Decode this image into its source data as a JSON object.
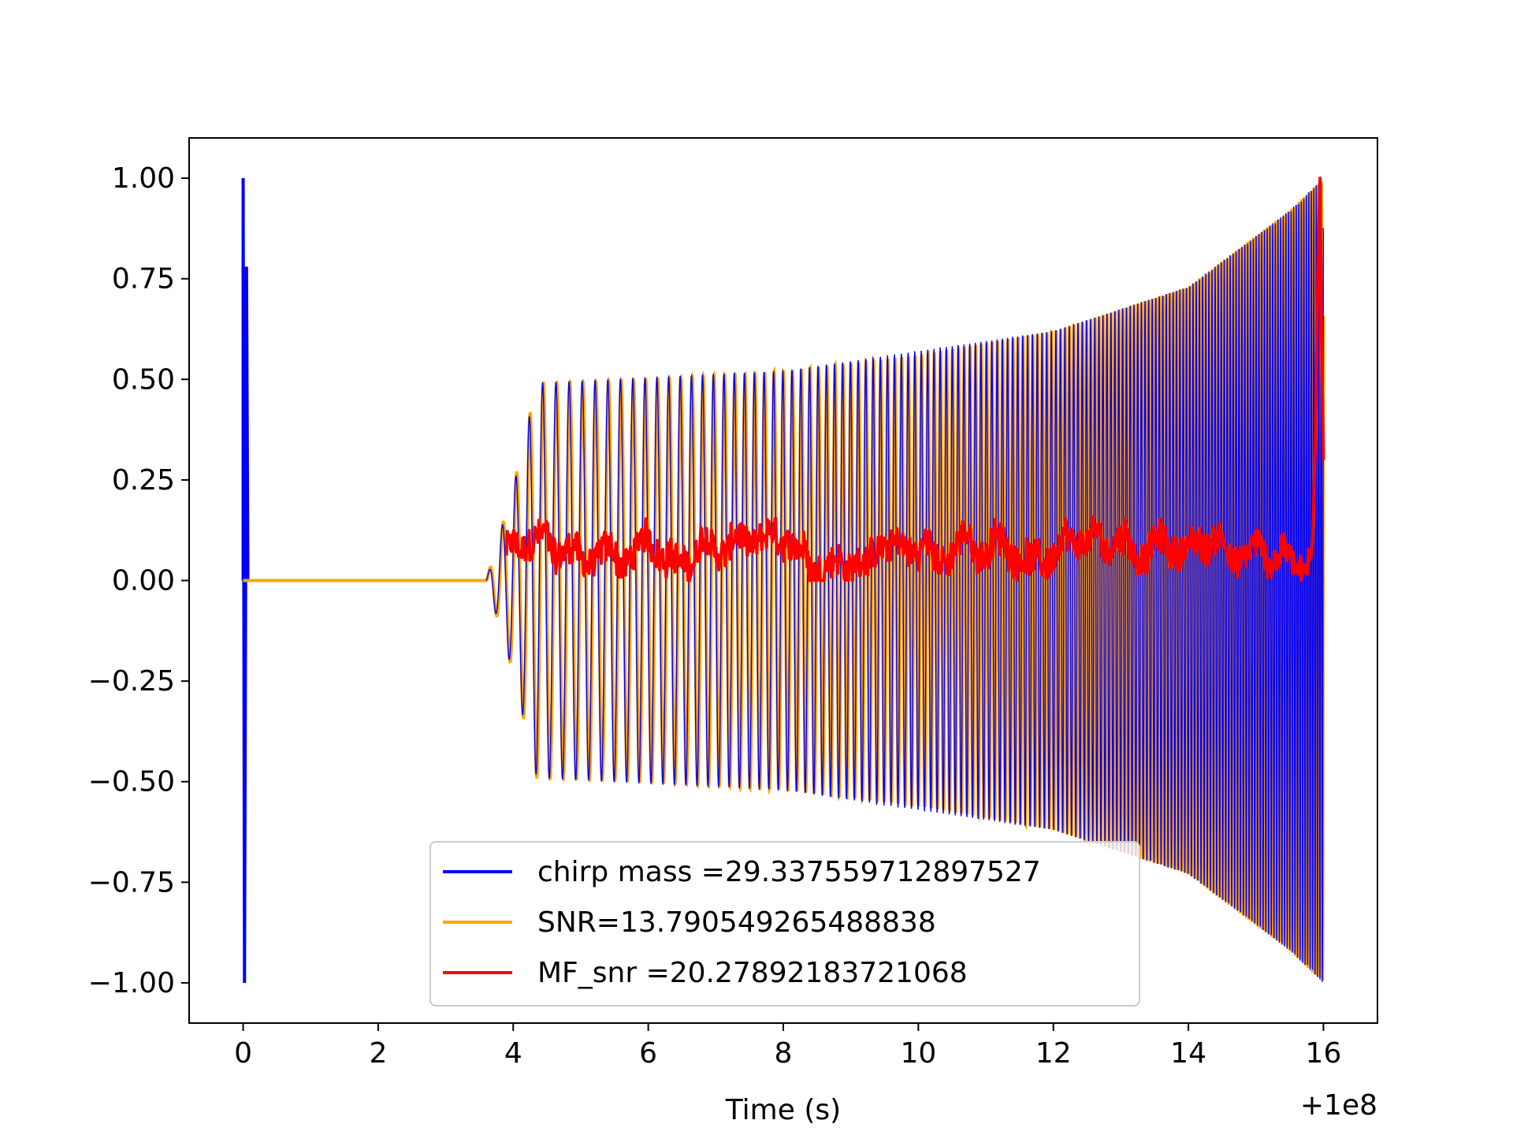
{
  "chart_data": {
    "type": "line",
    "title": "",
    "xlabel": "Time (s)",
    "ylabel": "",
    "x_offset_text": "+1e8",
    "xlim": [
      -0.8,
      16.8
    ],
    "ylim": [
      -1.1,
      1.1
    ],
    "x_ticks": [
      0,
      2,
      4,
      6,
      8,
      10,
      12,
      14,
      16
    ],
    "x_tick_labels": [
      "0",
      "2",
      "4",
      "6",
      "8",
      "10",
      "12",
      "14",
      "16"
    ],
    "y_ticks": [
      1.0,
      0.75,
      0.5,
      0.25,
      0.0,
      -0.25,
      -0.5,
      -0.75,
      -1.0
    ],
    "y_tick_labels": [
      "1.00",
      "0.75",
      "0.50",
      "0.25",
      "0.00",
      "−0.25",
      "−0.50",
      "−0.75",
      "−1.00"
    ],
    "grid": false,
    "legend_position": "lower-center",
    "series": [
      {
        "name": "chirp mass =29.337559712897527",
        "color": "#0000ff",
        "description": "normalized chirp template waveform aligned at the merger (~16 s); sharp spike at t=0",
        "spike": [
          [
            0.0,
            1.0
          ],
          [
            0.02,
            -1.0
          ],
          [
            0.05,
            0.78
          ],
          [
            0.07,
            0.0
          ]
        ],
        "merger_time": 16.0,
        "envelope_key_points": [
          [
            3.6,
            0.0
          ],
          [
            4.0,
            0.23
          ],
          [
            4.35,
            0.49
          ],
          [
            8.0,
            0.52
          ],
          [
            12.0,
            0.62
          ],
          [
            14.0,
            0.73
          ],
          [
            15.5,
            0.92
          ],
          [
            16.0,
            1.0
          ]
        ]
      },
      {
        "name": "SNR=13.790549265488838",
        "color": "#ffa500",
        "description": "time-shifted chirp waveform; zero from 0 to ~3.6 s then oscillating with growing envelope up to ±1.0 at ~16 s",
        "envelope_key_points": [
          [
            0.0,
            0.0
          ],
          [
            3.6,
            0.0
          ],
          [
            4.0,
            0.23
          ],
          [
            4.35,
            0.49
          ],
          [
            6.0,
            0.5
          ],
          [
            8.0,
            0.52
          ],
          [
            10.0,
            0.56
          ],
          [
            12.0,
            0.62
          ],
          [
            14.0,
            0.73
          ],
          [
            15.5,
            0.92
          ],
          [
            16.0,
            1.0
          ]
        ],
        "end_time": 16.0,
        "frequency_start_hz": 5.0,
        "frequency_end_hz": 28.0
      },
      {
        "name": "MF_snr =20.27892183721068",
        "color": "#ff0000",
        "description": "matched-filter output: noisy fluctuations 0.0–0.16 between ~3.9 s and ~15.8 s, sharp peak of 1.0 near 15.95 s",
        "start_time": 3.9,
        "peak": [
          15.95,
          1.0
        ],
        "end_point": [
          16.0,
          0.3
        ],
        "baseline_range": [
          0.0,
          0.16
        ]
      }
    ]
  }
}
